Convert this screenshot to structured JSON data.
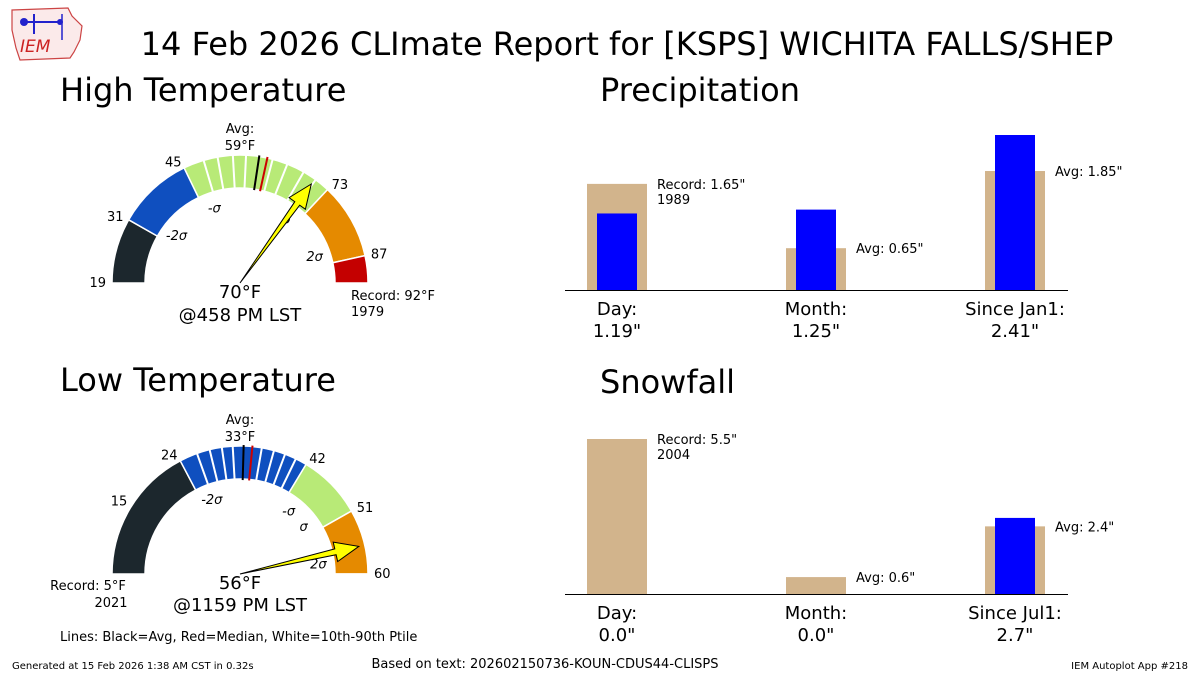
{
  "header": {
    "title": "14 Feb 2026 CLImate Report for [KSPS] WICHITA FALLS/SHEP",
    "logo_text": "IEM"
  },
  "footer": {
    "generated": "Generated at 15 Feb 2026 1:38 AM CST in 0.32s",
    "based_on": "Based on text: 202602150736-KOUN-CDUS44-CLISPS",
    "app_label": "IEM Autoplot App #218",
    "lines_legend": "Lines: Black=Avg, Red=Median, White=10th-90th Ptile"
  },
  "colors": {
    "dark": "#1c272d",
    "blue": "#0f4fbf",
    "green": "#b8ea77",
    "orange": "#e58a00",
    "red": "#c40000",
    "needle": "#ffff00",
    "avg_bar": "#d2b48c",
    "obs_bar": "#0000ff",
    "median_line": "#cc0000"
  },
  "chart_data": [
    {
      "type": "gauge",
      "title": "High Temperature",
      "min": 19,
      "max": 92,
      "stops": [
        {
          "label": "19",
          "value": 19
        },
        {
          "label": "31",
          "value": 31
        },
        {
          "label": "45",
          "value": 45
        },
        {
          "label": "73",
          "value": 73
        },
        {
          "label": "87",
          "value": 87
        }
      ],
      "sigma_labels": [
        "-2σ",
        "-σ",
        "σ",
        "2σ"
      ],
      "avg_label": "Avg:",
      "avg_value_label": "59°F",
      "avg": 59,
      "median": 60.5,
      "percentile_ticks": [
        48.8,
        51.4,
        54.2,
        56.6,
        61.5,
        64.3,
        67.6,
        70.2
      ],
      "observed": 70,
      "observed_label": "70°F",
      "time_label": "@458 PM LST",
      "record_label": "Record: 92°F",
      "record_year": "1979"
    },
    {
      "type": "gauge",
      "title": "Low Temperature",
      "min": 5,
      "max": 60,
      "stops": [
        {
          "label": "15",
          "value": 15
        },
        {
          "label": "24",
          "value": 24
        },
        {
          "label": "42",
          "value": 42
        },
        {
          "label": "51",
          "value": 51
        },
        {
          "label": "60",
          "value": 60
        }
      ],
      "sigma_labels": [
        "-2σ",
        "-σ",
        "σ",
        "2σ"
      ],
      "avg_label": "Avg:",
      "avg_value_label": "33°F",
      "avg": 33,
      "median": 34.2,
      "percentile_ticks": [
        26.5,
        28.3,
        30.0,
        31.5,
        35.5,
        37.2,
        38.8,
        40.4
      ],
      "observed": 56,
      "observed_label": "56°F",
      "time_label": "@1159 PM LST",
      "record_label": "Record: 5°F",
      "record_year": "2021"
    },
    {
      "type": "bar",
      "title": "Precipitation",
      "categories": [
        "Day:",
        "Month:",
        "Since Jan1:"
      ],
      "value_labels": [
        "1.19\"",
        "1.25\"",
        "2.41\""
      ],
      "observed": [
        1.19,
        1.25,
        2.41
      ],
      "reference": [
        1.65,
        0.65,
        1.85
      ],
      "reference_labels": [
        "Record: 1.65\"",
        "Avg: 0.65\"",
        "Avg: 1.85\""
      ],
      "reference_extra": [
        "1989",
        "",
        ""
      ]
    },
    {
      "type": "bar",
      "title": "Snowfall",
      "categories": [
        "Day:",
        "Month:",
        "Since Jul1:"
      ],
      "value_labels": [
        "0.0\"",
        "0.0\"",
        "2.7\""
      ],
      "observed": [
        0.0,
        0.0,
        2.7
      ],
      "reference": [
        5.5,
        0.6,
        2.4
      ],
      "reference_labels": [
        "Record: 5.5\"",
        "Avg: 0.6\"",
        "Avg: 2.4\""
      ],
      "reference_extra": [
        "2004",
        "",
        ""
      ]
    }
  ]
}
